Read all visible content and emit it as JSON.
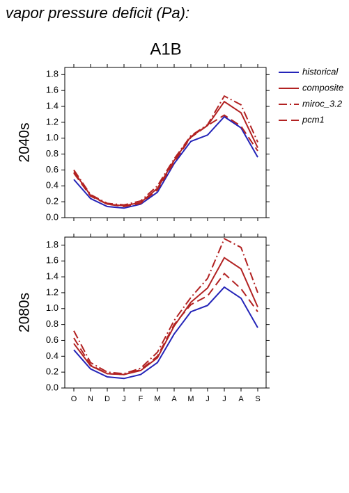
{
  "page_title": "vapor pressure deficit (Pa):",
  "chart_data": [
    {
      "type": "line",
      "title": "A1B",
      "ylabel": "2040s",
      "ylim": [
        0,
        1.89
      ],
      "yticks": [
        {
          "value": 0,
          "label": "0.0"
        },
        0.2,
        0.4,
        0.6,
        0.8,
        {
          "value": 1,
          "label": "1.0"
        },
        1.2,
        1.4,
        1.6,
        1.8
      ],
      "series": [
        {
          "name": "historical",
          "color": "#2424b8",
          "dash": "solid",
          "values": [
            0.48,
            0.24,
            0.14,
            0.12,
            0.17,
            0.32,
            0.68,
            0.96,
            1.04,
            1.27,
            1.13,
            0.76
          ]
        },
        {
          "name": "composite",
          "color": "#b22222",
          "dash": "solid",
          "values": [
            0.58,
            0.28,
            0.17,
            0.15,
            0.19,
            0.37,
            0.72,
            1.02,
            1.16,
            1.46,
            1.32,
            0.88
          ]
        },
        {
          "name": "miroc_3.2",
          "color": "#b22222",
          "dash": "dashdot",
          "values": [
            0.6,
            0.29,
            0.18,
            0.16,
            0.21,
            0.4,
            0.74,
            1.03,
            1.17,
            1.53,
            1.42,
            0.95
          ]
        },
        {
          "name": "pcm1",
          "color": "#b22222",
          "dash": "dashed",
          "values": [
            0.56,
            0.27,
            0.17,
            0.14,
            0.18,
            0.35,
            0.7,
            1.01,
            1.16,
            1.29,
            1.15,
            0.84
          ]
        }
      ]
    },
    {
      "type": "line",
      "ylabel": "2080s",
      "categories": [
        "O",
        "N",
        "D",
        "J",
        "F",
        "M",
        "A",
        "M",
        "J",
        "J",
        "A",
        "S"
      ],
      "ylim": [
        0,
        1.9
      ],
      "yticks": [
        {
          "value": 0,
          "label": "0.0"
        },
        0.2,
        0.4,
        0.6,
        0.8,
        {
          "value": 1,
          "label": "1.0"
        },
        1.2,
        1.4,
        1.6,
        1.8
      ],
      "series": [
        {
          "color": "#2424b8",
          "dash": "solid",
          "values": [
            0.48,
            0.24,
            0.14,
            0.12,
            0.17,
            0.32,
            0.68,
            0.96,
            1.04,
            1.27,
            1.13,
            0.76
          ]
        },
        {
          "color": "#b22222",
          "dash": "solid",
          "values": [
            0.56,
            0.28,
            0.18,
            0.17,
            0.22,
            0.38,
            0.78,
            1.08,
            1.26,
            1.64,
            1.5,
            1.02
          ]
        },
        {
          "color": "#b22222",
          "dash": "dashdot",
          "values": [
            0.72,
            0.32,
            0.2,
            0.18,
            0.25,
            0.45,
            0.85,
            1.14,
            1.38,
            1.88,
            1.77,
            1.2
          ]
        },
        {
          "color": "#b22222",
          "dash": "dashed",
          "values": [
            0.63,
            0.29,
            0.18,
            0.17,
            0.23,
            0.4,
            0.8,
            1.05,
            1.16,
            1.44,
            1.25,
            0.96
          ]
        }
      ]
    }
  ]
}
